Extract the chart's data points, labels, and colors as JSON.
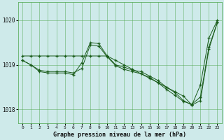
{
  "xlabel": "Graphe pression niveau de la mer (hPa)",
  "bg_color": "#ceeaea",
  "grid_color": "#4da64d",
  "line_color": "#1a5c1a",
  "marker": "+",
  "ylim": [
    1017.7,
    1020.4
  ],
  "xlim": [
    -0.5,
    23.5
  ],
  "yticks": [
    1018,
    1019,
    1020
  ],
  "xticks": [
    0,
    1,
    2,
    3,
    4,
    5,
    6,
    7,
    8,
    9,
    10,
    11,
    12,
    13,
    14,
    15,
    16,
    17,
    18,
    19,
    20,
    21,
    22,
    23
  ],
  "series": [
    {
      "x": [
        0,
        1,
        2,
        3,
        4,
        5,
        6,
        7,
        8,
        9,
        10,
        11,
        12,
        13,
        14,
        15,
        16,
        17,
        18,
        19,
        20,
        21,
        22,
        23
      ],
      "y": [
        1019.2,
        1019.2,
        1019.2,
        1019.2,
        1019.2,
        1019.2,
        1019.2,
        1019.2,
        1019.2,
        1019.2,
        1019.2,
        1019.1,
        1019.0,
        1018.9,
        1018.8,
        1018.7,
        1018.6,
        1018.5,
        1018.4,
        1018.3,
        1018.1,
        1018.55,
        1019.6,
        1020.0
      ]
    },
    {
      "x": [
        0,
        1,
        2,
        3,
        4,
        5,
        6,
        7,
        8,
        9,
        10,
        11,
        12,
        13,
        14,
        15,
        16,
        17,
        18,
        19,
        20,
        21,
        22,
        23
      ],
      "y": [
        1019.1,
        1019.0,
        1018.85,
        1018.82,
        1018.82,
        1018.82,
        1018.78,
        1019.05,
        1019.5,
        1019.48,
        1019.2,
        1019.0,
        1018.95,
        1018.88,
        1018.85,
        1018.75,
        1018.65,
        1018.5,
        1018.38,
        1018.2,
        1018.1,
        1018.2,
        1019.35,
        1019.95
      ]
    },
    {
      "x": [
        0,
        1,
        2,
        3,
        4,
        5,
        6,
        7,
        8,
        9,
        10,
        11,
        12,
        13,
        14,
        15,
        16,
        17,
        18,
        19,
        20,
        21,
        22,
        23
      ],
      "y": [
        1019.1,
        1019.0,
        1018.88,
        1018.85,
        1018.85,
        1018.85,
        1018.82,
        1018.92,
        1019.45,
        1019.42,
        1019.18,
        1018.98,
        1018.9,
        1018.85,
        1018.8,
        1018.72,
        1018.6,
        1018.45,
        1018.32,
        1018.18,
        1018.12,
        1018.28,
        1019.4,
        1019.95
      ]
    }
  ]
}
